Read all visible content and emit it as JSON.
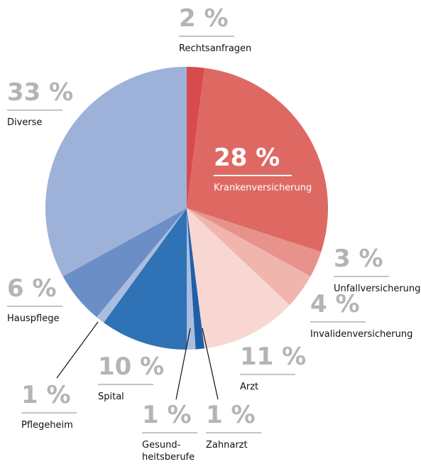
{
  "chart_data": {
    "type": "pie",
    "categories": [
      "Rechtsanfragen",
      "Krankenversicherung",
      "Unfallversicherung",
      "Invalidenversicherung",
      "Arzt",
      "Zahnarzt",
      "Gesund-\nheitsberufe",
      "Spital",
      "Pflegeheim",
      "Hauspflege",
      "Diverse"
    ],
    "values": [
      2,
      28,
      3,
      4,
      11,
      1,
      1,
      10,
      1,
      6,
      33
    ],
    "value_labels": [
      "2 %",
      "28 %",
      "3 %",
      "4 %",
      "11 %",
      "1 %",
      "1 %",
      "10 %",
      "1 %",
      "6 %",
      "33 %"
    ],
    "colors": [
      "#d94a4c",
      "#de6963",
      "#e8928c",
      "#f0b6ae",
      "#f8d7d2",
      "#1f5fa8",
      "#a9bde0",
      "#2f72b5",
      "#a9bde0",
      "#6b8ec6",
      "#9eb2d9"
    ]
  }
}
